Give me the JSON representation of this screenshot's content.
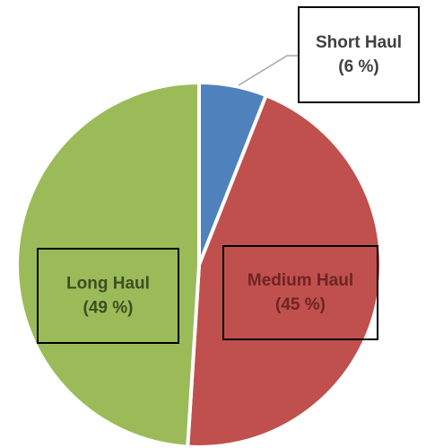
{
  "chart_data": {
    "type": "pie",
    "categories": [
      "Short Haul",
      "Medium Haul",
      "Long Haul"
    ],
    "values": [
      6,
      45,
      49
    ],
    "value_labels": [
      "(6 %)",
      "(45 %)",
      "(49 %)"
    ],
    "colors": [
      "#4f81bd",
      "#c0504d",
      "#9bbb59"
    ]
  }
}
